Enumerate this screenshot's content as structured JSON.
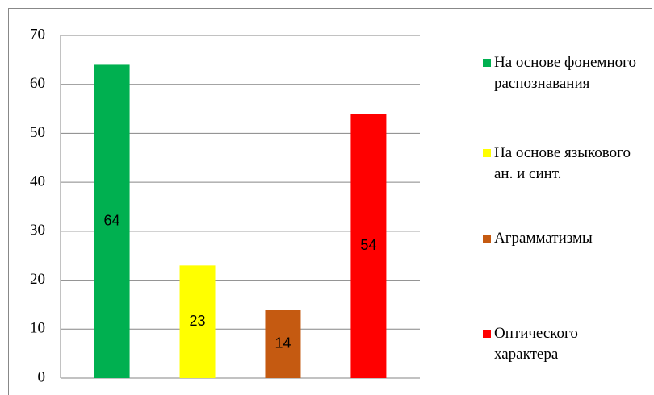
{
  "chart_data": {
    "type": "bar",
    "categories": [
      null
    ],
    "series": [
      {
        "name": "На основе фонемного распознавания",
        "color": "#00b050",
        "values": [
          64
        ]
      },
      {
        "name": "На основе языкового ан. и синт.",
        "color": "#ffff00",
        "values": [
          23
        ]
      },
      {
        "name": "Аграмматизмы",
        "color": "#c55a11",
        "values": [
          14
        ]
      },
      {
        "name": "Оптического характера",
        "color": "#ff0000",
        "values": [
          54
        ]
      }
    ],
    "ylim": [
      0,
      70
    ],
    "yticks": [
      0,
      10,
      20,
      30,
      40,
      50,
      60,
      70
    ],
    "grid": true,
    "legend": "right"
  }
}
